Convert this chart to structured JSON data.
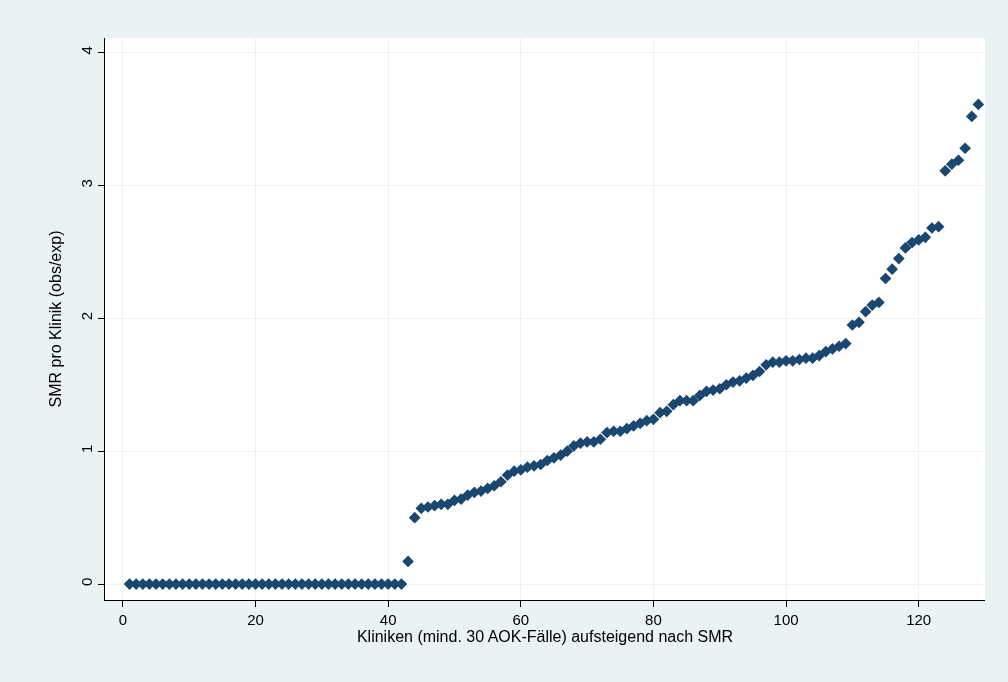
{
  "chart_data": {
    "type": "scatter",
    "xlabel": "Kliniken (mind. 30 AOK-Fälle) aufsteigend nach SMR",
    "ylabel": "SMR pro Klinik (obs/exp)",
    "x": [
      1,
      2,
      3,
      4,
      5,
      6,
      7,
      8,
      9,
      10,
      11,
      12,
      13,
      14,
      15,
      16,
      17,
      18,
      19,
      20,
      21,
      22,
      23,
      24,
      25,
      26,
      27,
      28,
      29,
      30,
      31,
      32,
      33,
      34,
      35,
      36,
      37,
      38,
      39,
      40,
      41,
      42,
      43,
      44,
      45,
      46,
      47,
      48,
      49,
      50,
      51,
      52,
      53,
      54,
      55,
      56,
      57,
      58,
      59,
      60,
      61,
      62,
      63,
      64,
      65,
      66,
      67,
      68,
      69,
      70,
      71,
      72,
      73,
      74,
      75,
      76,
      77,
      78,
      79,
      80,
      81,
      82,
      83,
      84,
      85,
      86,
      87,
      88,
      89,
      90,
      91,
      92,
      93,
      94,
      95,
      96,
      97,
      98,
      99,
      100,
      101,
      102,
      103,
      104,
      105,
      106,
      107,
      108,
      109,
      110,
      111,
      112,
      113,
      114,
      115,
      116,
      117,
      118,
      119,
      120,
      121,
      122,
      123,
      124,
      125,
      126,
      127,
      128,
      129
    ],
    "values": [
      0,
      0,
      0,
      0,
      0,
      0,
      0,
      0,
      0,
      0,
      0,
      0,
      0,
      0,
      0,
      0,
      0,
      0,
      0,
      0,
      0,
      0,
      0,
      0,
      0,
      0,
      0,
      0,
      0,
      0,
      0,
      0,
      0,
      0,
      0,
      0,
      0,
      0,
      0,
      0,
      0,
      0,
      0.17,
      0.5,
      0.57,
      0.58,
      0.59,
      0.6,
      0.6,
      0.63,
      0.64,
      0.67,
      0.69,
      0.7,
      0.72,
      0.74,
      0.77,
      0.82,
      0.85,
      0.86,
      0.88,
      0.89,
      0.9,
      0.93,
      0.95,
      0.97,
      1.0,
      1.04,
      1.06,
      1.07,
      1.07,
      1.09,
      1.14,
      1.15,
      1.15,
      1.17,
      1.19,
      1.21,
      1.23,
      1.24,
      1.29,
      1.3,
      1.35,
      1.38,
      1.38,
      1.38,
      1.42,
      1.45,
      1.46,
      1.47,
      1.5,
      1.52,
      1.53,
      1.55,
      1.57,
      1.6,
      1.65,
      1.67,
      1.67,
      1.68,
      1.68,
      1.69,
      1.7,
      1.7,
      1.72,
      1.75,
      1.77,
      1.79,
      1.81,
      1.95,
      1.97,
      2.05,
      2.1,
      2.12,
      2.3,
      2.37,
      2.45,
      2.53,
      2.57,
      2.59,
      2.61,
      2.68,
      2.69,
      3.11,
      3.16,
      3.19,
      3.28,
      3.52,
      3.61
    ],
    "color": "#1a476f",
    "marker": "diamond",
    "grid": true,
    "xlim": [
      -2.7,
      130
    ],
    "xticks": [
      0,
      20,
      40,
      60,
      80,
      100,
      120
    ],
    "ylim": [
      -0.12,
      4.11
    ],
    "yticks": [
      0,
      1,
      2,
      3,
      4
    ]
  }
}
